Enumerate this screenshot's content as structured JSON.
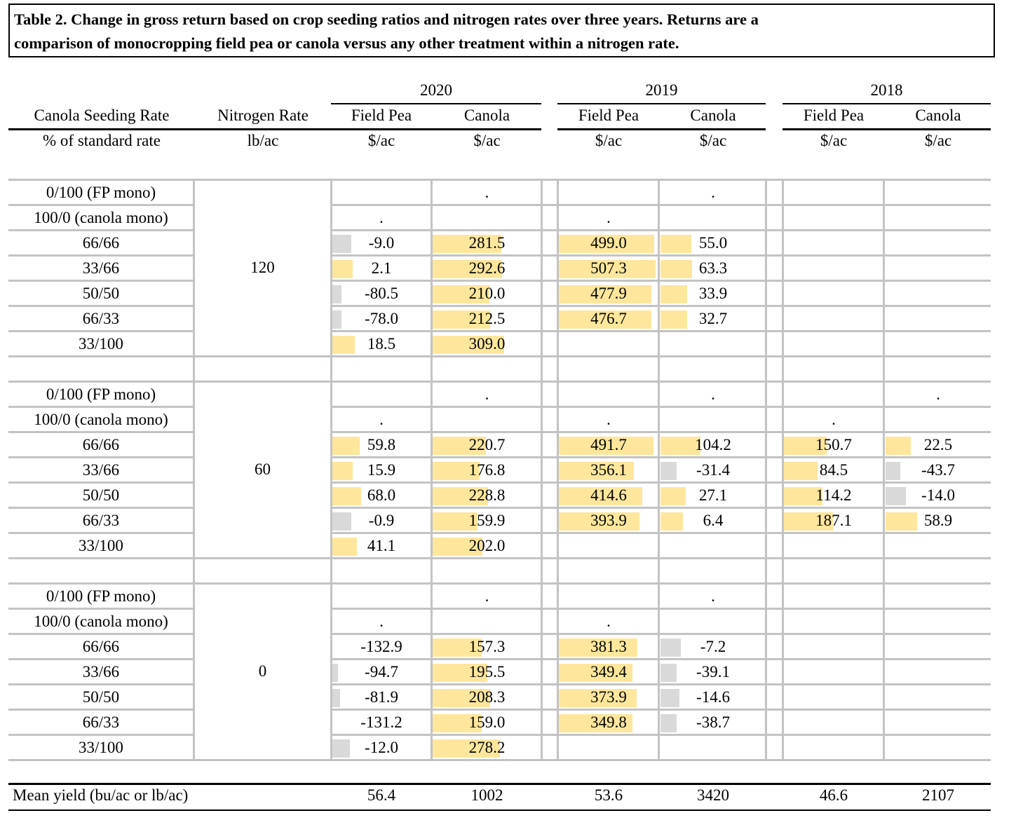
{
  "title": {
    "line1": "Table 2. Change in gross return based on crop seeding ratios and nitrogen rates over three years. Returns are a",
    "line2": "comparison of monocropping field pea or canola versus any other treatment within a nitrogen rate."
  },
  "header": {
    "years": [
      "2020",
      "2019",
      "2018"
    ],
    "col_seeding": "Canola Seeding Rate",
    "col_nitrogen": "Nitrogen Rate",
    "crop_columns": [
      "Field Pea",
      "Canola",
      "Field Pea",
      "Canola",
      "Field Pea",
      "Canola"
    ],
    "unit_seeding": "% of standard rate",
    "unit_nitrogen": "lb/ac",
    "crop_units": [
      "$/ac",
      "$/ac",
      "$/ac",
      "$/ac",
      "$/ac",
      "$/ac"
    ]
  },
  "bar_colors": {
    "positive": "#fee69c",
    "negative": "#d9d9d9"
  },
  "groups": [
    {
      "nitrogen": "120",
      "rows": [
        {
          "ratio": "0/100 (FP mono)",
          "cells": [
            {
              "v": ""
            },
            {
              "v": "."
            },
            {
              "v": ""
            },
            {
              "v": "."
            },
            {
              "v": ""
            },
            {
              "v": ""
            }
          ]
        },
        {
          "ratio": "100/0 (canola mono)",
          "cells": [
            {
              "v": "."
            },
            {
              "v": ""
            },
            {
              "v": "."
            },
            {
              "v": ""
            },
            {
              "v": ""
            },
            {
              "v": ""
            }
          ]
        },
        {
          "ratio": "66/66",
          "cells": [
            {
              "v": "-9.0",
              "bar": 0.19
            },
            {
              "v": "281.5",
              "bar": 0.63
            },
            {
              "v": "499.0",
              "bar": 0.96
            },
            {
              "v": "55.0",
              "bar": 0.29
            },
            {
              "v": ""
            },
            {
              "v": ""
            }
          ]
        },
        {
          "ratio": "33/66",
          "cells": [
            {
              "v": "2.1",
              "bar": 0.21
            },
            {
              "v": "292.6",
              "bar": 0.64
            },
            {
              "v": "507.3",
              "bar": 0.97
            },
            {
              "v": "63.3",
              "bar": 0.3
            },
            {
              "v": ""
            },
            {
              "v": ""
            }
          ]
        },
        {
          "ratio": "50/50",
          "cells": [
            {
              "v": "-80.5",
              "bar": 0.09
            },
            {
              "v": "210.0",
              "bar": 0.52
            },
            {
              "v": "477.9",
              "bar": 0.93
            },
            {
              "v": "33.9",
              "bar": 0.25
            },
            {
              "v": ""
            },
            {
              "v": ""
            }
          ]
        },
        {
          "ratio": "66/33",
          "cells": [
            {
              "v": "-78.0",
              "bar": 0.09
            },
            {
              "v": "212.5",
              "bar": 0.53
            },
            {
              "v": "476.7",
              "bar": 0.93
            },
            {
              "v": "32.7",
              "bar": 0.25
            },
            {
              "v": ""
            },
            {
              "v": ""
            }
          ]
        },
        {
          "ratio": "33/100",
          "cells": [
            {
              "v": "18.5",
              "bar": 0.23
            },
            {
              "v": "309.0",
              "bar": 0.66
            },
            {
              "v": ""
            },
            {
              "v": ""
            },
            {
              "v": ""
            },
            {
              "v": ""
            }
          ]
        }
      ]
    },
    {
      "nitrogen": "60",
      "rows": [
        {
          "ratio": "0/100 (FP mono)",
          "cells": [
            {
              "v": ""
            },
            {
              "v": "."
            },
            {
              "v": ""
            },
            {
              "v": "."
            },
            {
              "v": ""
            },
            {
              "v": "."
            }
          ]
        },
        {
          "ratio": "100/0 (canola mono)",
          "cells": [
            {
              "v": "."
            },
            {
              "v": ""
            },
            {
              "v": "."
            },
            {
              "v": ""
            },
            {
              "v": "."
            },
            {
              "v": ""
            }
          ]
        },
        {
          "ratio": "66/66",
          "cells": [
            {
              "v": "59.8",
              "bar": 0.28
            },
            {
              "v": "220.7",
              "bar": 0.49
            },
            {
              "v": "491.7",
              "bar": 0.95
            },
            {
              "v": "104.2",
              "bar": 0.38
            },
            {
              "v": "150.7",
              "bar": 0.43
            },
            {
              "v": "22.5",
              "bar": 0.24
            }
          ]
        },
        {
          "ratio": "33/66",
          "cells": [
            {
              "v": "15.9",
              "bar": 0.21
            },
            {
              "v": "176.8",
              "bar": 0.43
            },
            {
              "v": "356.1",
              "bar": 0.75
            },
            {
              "v": "-31.4",
              "bar": 0.15
            },
            {
              "v": "84.5",
              "bar": 0.34
            },
            {
              "v": "-43.7",
              "bar": 0.14
            }
          ]
        },
        {
          "ratio": "50/50",
          "cells": [
            {
              "v": "68.0",
              "bar": 0.29
            },
            {
              "v": "228.8",
              "bar": 0.51
            },
            {
              "v": "414.6",
              "bar": 0.84
            },
            {
              "v": "27.1",
              "bar": 0.24
            },
            {
              "v": "114.2",
              "bar": 0.39
            },
            {
              "v": "-14.0",
              "bar": 0.19
            }
          ]
        },
        {
          "ratio": "66/33",
          "cells": [
            {
              "v": "-0.9",
              "bar": 0.19
            },
            {
              "v": "159.9",
              "bar": 0.41
            },
            {
              "v": "393.9",
              "bar": 0.81
            },
            {
              "v": "6.4",
              "bar": 0.21
            },
            {
              "v": "187.1",
              "bar": 0.49
            },
            {
              "v": "58.9",
              "bar": 0.3
            }
          ]
        },
        {
          "ratio": "33/100",
          "cells": [
            {
              "v": "41.1",
              "bar": 0.25
            },
            {
              "v": "202.0",
              "bar": 0.46
            },
            {
              "v": ""
            },
            {
              "v": ""
            },
            {
              "v": ""
            },
            {
              "v": ""
            }
          ]
        }
      ]
    },
    {
      "nitrogen": "0",
      "rows": [
        {
          "ratio": "0/100 (FP mono)",
          "cells": [
            {
              "v": ""
            },
            {
              "v": "."
            },
            {
              "v": ""
            },
            {
              "v": "."
            },
            {
              "v": ""
            },
            {
              "v": ""
            }
          ]
        },
        {
          "ratio": "100/0 (canola mono)",
          "cells": [
            {
              "v": "."
            },
            {
              "v": ""
            },
            {
              "v": "."
            },
            {
              "v": ""
            },
            {
              "v": ""
            },
            {
              "v": ""
            }
          ]
        },
        {
          "ratio": "66/66",
          "cells": [
            {
              "v": "-132.9",
              "bar": 0
            },
            {
              "v": "157.3",
              "bar": 0.45
            },
            {
              "v": "381.3",
              "bar": 0.79
            },
            {
              "v": "-7.2",
              "bar": 0.19
            },
            {
              "v": ""
            },
            {
              "v": ""
            }
          ]
        },
        {
          "ratio": "33/66",
          "cells": [
            {
              "v": "-94.7",
              "bar": 0.06
            },
            {
              "v": "195.5",
              "bar": 0.5
            },
            {
              "v": "349.4",
              "bar": 0.74
            },
            {
              "v": "-39.1",
              "bar": 0.15
            },
            {
              "v": ""
            },
            {
              "v": ""
            }
          ]
        },
        {
          "ratio": "50/50",
          "cells": [
            {
              "v": "-81.9",
              "bar": 0.08
            },
            {
              "v": "208.3",
              "bar": 0.53
            },
            {
              "v": "373.9",
              "bar": 0.78
            },
            {
              "v": "-14.6",
              "bar": 0.18
            },
            {
              "v": ""
            },
            {
              "v": ""
            }
          ]
        },
        {
          "ratio": "66/33",
          "cells": [
            {
              "v": "-131.2",
              "bar": 0
            },
            {
              "v": "159.0",
              "bar": 0.45
            },
            {
              "v": "349.8",
              "bar": 0.74
            },
            {
              "v": "-38.7",
              "bar": 0.15
            },
            {
              "v": ""
            },
            {
              "v": ""
            }
          ]
        },
        {
          "ratio": "33/100",
          "cells": [
            {
              "v": "-12.0",
              "bar": 0.18
            },
            {
              "v": "278.2",
              "bar": 0.62
            },
            {
              "v": ""
            },
            {
              "v": ""
            },
            {
              "v": ""
            },
            {
              "v": ""
            }
          ]
        }
      ]
    }
  ],
  "footer": {
    "label": "Mean yield (bu/ac or lb/ac)",
    "values": [
      "56.4",
      "1002",
      "53.6",
      "3420",
      "46.6",
      "2107"
    ]
  }
}
